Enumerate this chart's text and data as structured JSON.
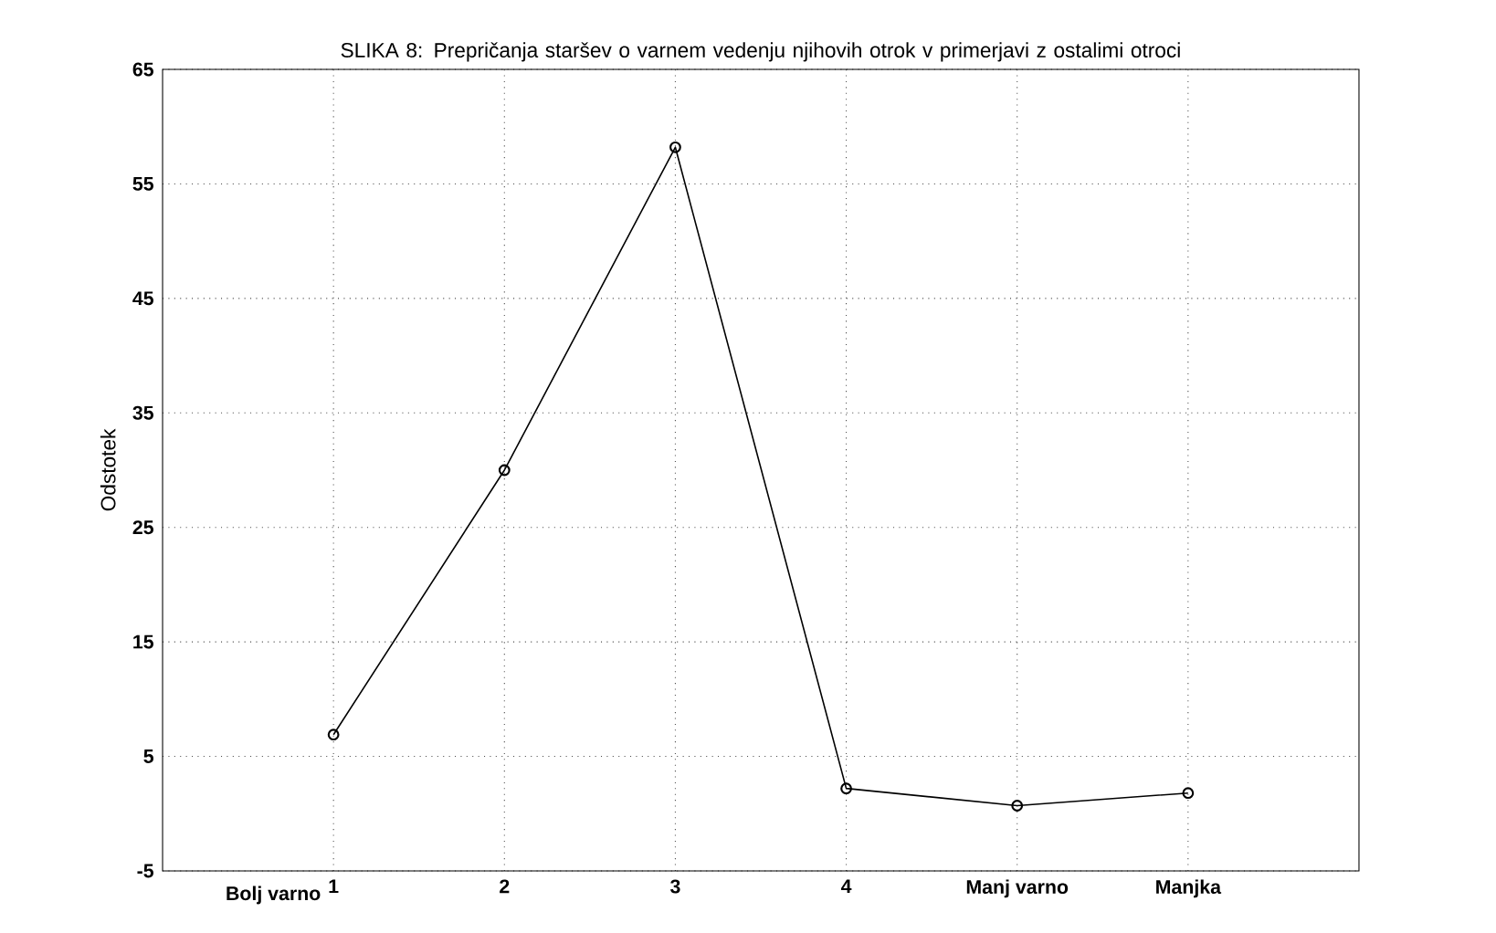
{
  "chart_data": {
    "type": "line",
    "title": "SLIKA 8: Prepričanja staršev o varnem vedenju njihovih otrok v primerjavi z ostalimi otroci",
    "ylabel": "Odstotek",
    "categories": [
      "1",
      "2",
      "3",
      "4",
      "Manj varno",
      "Manjka"
    ],
    "values": [
      6.9,
      30,
      58.2,
      2.2,
      0.7,
      1.8
    ],
    "color": "#000000",
    "marker": "circle",
    "line_style": "solid",
    "grid": true,
    "ylim": [
      -5,
      65
    ],
    "yticks": [
      -5,
      5,
      15,
      25,
      35,
      45,
      55,
      65
    ],
    "annotations": [
      "Bolj varno"
    ]
  }
}
